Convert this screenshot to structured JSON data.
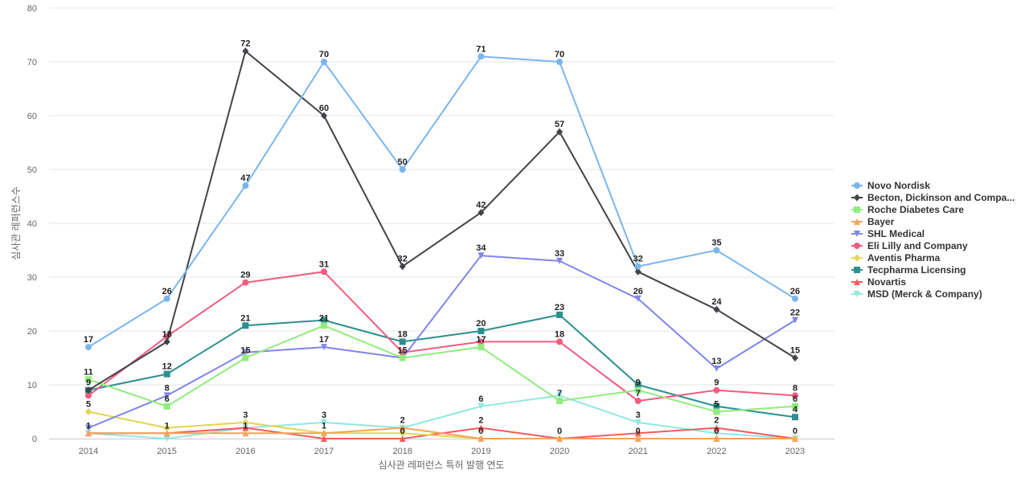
{
  "chart_data": {
    "type": "line",
    "xlabel": "심사관 레퍼런스 특허 발행 연도",
    "ylabel": "심사관 레퍼런스수",
    "ylim": [
      0,
      80
    ],
    "yticks": [
      0,
      10,
      20,
      30,
      40,
      50,
      60,
      70,
      80
    ],
    "grid": true,
    "legend_position": "right",
    "x": [
      "2014",
      "2015",
      "2016",
      "2017",
      "2018",
      "2019",
      "2020",
      "2021",
      "2022",
      "2023"
    ],
    "series": [
      {
        "name": "Novo Nordisk",
        "color": "#7cb5ec",
        "marker": "circle",
        "values": [
          17,
          26,
          47,
          70,
          50,
          71,
          70,
          32,
          35,
          26
        ]
      },
      {
        "name": "Becton, Dickinson and Compa...",
        "color": "#434348",
        "marker": "diamond",
        "values": [
          9,
          18,
          72,
          60,
          32,
          42,
          57,
          31,
          24,
          15
        ]
      },
      {
        "name": "Roche Diabetes Care",
        "color": "#90ed7d",
        "marker": "square",
        "values": [
          11,
          6,
          15,
          21,
          15,
          17,
          7,
          9,
          5,
          6
        ]
      },
      {
        "name": "Bayer",
        "color": "#f7a35c",
        "marker": "triangle",
        "values": [
          1,
          1,
          1,
          1,
          2,
          0,
          0,
          0,
          0,
          0
        ]
      },
      {
        "name": "SHL Medical",
        "color": "#8085e9",
        "marker": "triangle-down",
        "values": [
          2,
          8,
          16,
          17,
          15,
          34,
          33,
          26,
          13,
          22
        ]
      },
      {
        "name": "Eli Lilly and Company",
        "color": "#f15c80",
        "marker": "circle",
        "values": [
          8,
          19,
          29,
          31,
          16,
          18,
          18,
          7,
          9,
          8
        ]
      },
      {
        "name": "Aventis Pharma",
        "color": "#e4d354",
        "marker": "diamond",
        "values": [
          5,
          2,
          3,
          1,
          1,
          0,
          0,
          0,
          0,
          0
        ]
      },
      {
        "name": "Tecpharma Licensing",
        "color": "#2b908f",
        "marker": "square",
        "values": [
          9,
          12,
          21,
          22,
          18,
          20,
          23,
          10,
          6,
          4
        ]
      },
      {
        "name": "Novartis",
        "color": "#f45b5b",
        "marker": "triangle",
        "values": [
          1,
          1,
          2,
          0,
          0,
          2,
          0,
          1,
          2,
          0
        ]
      },
      {
        "name": "MSD (Merck & Company)",
        "color": "#91e8e1",
        "marker": "triangle-down",
        "values": [
          1,
          0,
          2,
          3,
          2,
          6,
          8,
          3,
          1,
          0
        ]
      }
    ],
    "data_labels": [
      {
        "x": "2014",
        "text": "17",
        "y": 17
      },
      {
        "x": "2014",
        "text": "11",
        "y": 11
      },
      {
        "x": "2014",
        "text": "9",
        "y": 9
      },
      {
        "x": "2014",
        "text": "5",
        "y": 5
      },
      {
        "x": "2014",
        "text": "1",
        "y": 1
      },
      {
        "x": "2015",
        "text": "26",
        "y": 26
      },
      {
        "x": "2015",
        "text": "18",
        "y": 18
      },
      {
        "x": "2015",
        "text": "12",
        "y": 12
      },
      {
        "x": "2015",
        "text": "8",
        "y": 8
      },
      {
        "x": "2015",
        "text": "6",
        "y": 6
      },
      {
        "x": "2015",
        "text": "1",
        "y": 1
      },
      {
        "x": "2016",
        "text": "72",
        "y": 72
      },
      {
        "x": "2016",
        "text": "47",
        "y": 47
      },
      {
        "x": "2016",
        "text": "29",
        "y": 29
      },
      {
        "x": "2016",
        "text": "21",
        "y": 21
      },
      {
        "x": "2016",
        "text": "15",
        "y": 15
      },
      {
        "x": "2016",
        "text": "3",
        "y": 3
      },
      {
        "x": "2016",
        "text": "1",
        "y": 1
      },
      {
        "x": "2017",
        "text": "70",
        "y": 70
      },
      {
        "x": "2017",
        "text": "60",
        "y": 60
      },
      {
        "x": "2017",
        "text": "31",
        "y": 31
      },
      {
        "x": "2017",
        "text": "21",
        "y": 21
      },
      {
        "x": "2017",
        "text": "17",
        "y": 17
      },
      {
        "x": "2017",
        "text": "3",
        "y": 3
      },
      {
        "x": "2017",
        "text": "1",
        "y": 1
      },
      {
        "x": "2018",
        "text": "50",
        "y": 50
      },
      {
        "x": "2018",
        "text": "32",
        "y": 32
      },
      {
        "x": "2018",
        "text": "18",
        "y": 18
      },
      {
        "x": "2018",
        "text": "15",
        "y": 15
      },
      {
        "x": "2018",
        "text": "2",
        "y": 2
      },
      {
        "x": "2018",
        "text": "0",
        "y": 0
      },
      {
        "x": "2019",
        "text": "71",
        "y": 71
      },
      {
        "x": "2019",
        "text": "42",
        "y": 42
      },
      {
        "x": "2019",
        "text": "34",
        "y": 34
      },
      {
        "x": "2019",
        "text": "20",
        "y": 20
      },
      {
        "x": "2019",
        "text": "17",
        "y": 17
      },
      {
        "x": "2019",
        "text": "6",
        "y": 6
      },
      {
        "x": "2019",
        "text": "2",
        "y": 2
      },
      {
        "x": "2019",
        "text": "0",
        "y": 0
      },
      {
        "x": "2020",
        "text": "70",
        "y": 70
      },
      {
        "x": "2020",
        "text": "57",
        "y": 57
      },
      {
        "x": "2020",
        "text": "33",
        "y": 33
      },
      {
        "x": "2020",
        "text": "23",
        "y": 23
      },
      {
        "x": "2020",
        "text": "18",
        "y": 18
      },
      {
        "x": "2020",
        "text": "7",
        "y": 7
      },
      {
        "x": "2020",
        "text": "0",
        "y": 0
      },
      {
        "x": "2021",
        "text": "32",
        "y": 32
      },
      {
        "x": "2021",
        "text": "26",
        "y": 26
      },
      {
        "x": "2021",
        "text": "9",
        "y": 9
      },
      {
        "x": "2021",
        "text": "7",
        "y": 7
      },
      {
        "x": "2021",
        "text": "3",
        "y": 3
      },
      {
        "x": "2021",
        "text": "0",
        "y": 0
      },
      {
        "x": "2022",
        "text": "35",
        "y": 35
      },
      {
        "x": "2022",
        "text": "24",
        "y": 24
      },
      {
        "x": "2022",
        "text": "13",
        "y": 13
      },
      {
        "x": "2022",
        "text": "9",
        "y": 9
      },
      {
        "x": "2022",
        "text": "5",
        "y": 5
      },
      {
        "x": "2022",
        "text": "2",
        "y": 2
      },
      {
        "x": "2022",
        "text": "0",
        "y": 0
      },
      {
        "x": "2023",
        "text": "26",
        "y": 26
      },
      {
        "x": "2023",
        "text": "22",
        "y": 22
      },
      {
        "x": "2023",
        "text": "15",
        "y": 15
      },
      {
        "x": "2023",
        "text": "8",
        "y": 8
      },
      {
        "x": "2023",
        "text": "6",
        "y": 6
      },
      {
        "x": "2023",
        "text": "4",
        "y": 4
      },
      {
        "x": "2023",
        "text": "0",
        "y": 0
      }
    ]
  }
}
